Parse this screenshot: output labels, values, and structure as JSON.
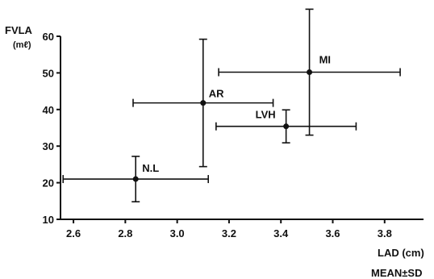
{
  "chart_data": {
    "type": "scatter",
    "ylabel": "FVLA",
    "yunit": "(mℓ)",
    "xlabel": "LAD (cm)",
    "note": "MEAN±SD",
    "xlim": [
      2.55,
      3.95
    ],
    "ylim": [
      10,
      60
    ],
    "xticks": [
      "2.6",
      "2.8",
      "3.0",
      "3.2",
      "3.4",
      "3.6",
      "3.8"
    ],
    "yticks": [
      "10",
      "20",
      "30",
      "40",
      "50",
      "60"
    ],
    "grid": false,
    "points": [
      {
        "label": "N.L",
        "x": 2.84,
        "y": 21,
        "x_sd": 0.28,
        "y_sd": 6.2
      },
      {
        "label": "AR",
        "x": 3.1,
        "y": 41.8,
        "x_sd": 0.27,
        "y_sd": 17.4
      },
      {
        "label": "LVH",
        "x": 3.42,
        "y": 35.4,
        "x_sd": 0.27,
        "y_sd": 4.5
      },
      {
        "label": "MI",
        "x": 3.51,
        "y": 50.2,
        "x_sd": 0.35,
        "y_sd": 17.2
      }
    ]
  }
}
